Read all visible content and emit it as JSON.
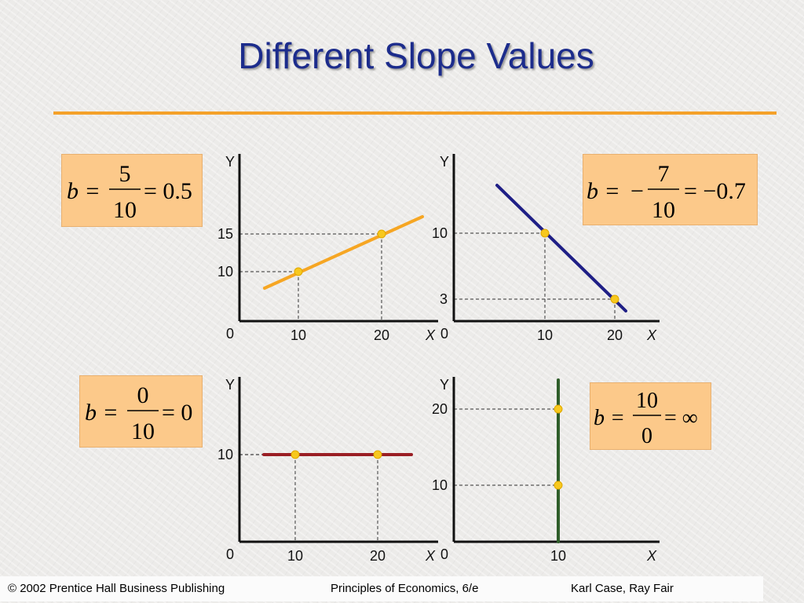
{
  "title": "Different Slope Values",
  "formulas": {
    "f1": {
      "lhs": "b =",
      "num": "5",
      "den": "10",
      "rhs": "= 0.5"
    },
    "f2": {
      "lhs": "b =",
      "neg": "−",
      "num": "7",
      "den": "10",
      "rhs": "= −0.7"
    },
    "f3": {
      "lhs": "b =",
      "num": "0",
      "den": "10",
      "rhs": "= 0"
    },
    "f4": {
      "lhs": "b =",
      "num": "10",
      "den": "0",
      "rhs": "= ∞"
    }
  },
  "footer": {
    "left": "© 2002 Prentice Hall Business Publishing",
    "center": "Principles of Economics, 6/e",
    "right": "Karl Case, Ray Fair"
  },
  "colors": {
    "title": "#1c2c8c",
    "rule": "#f4a12a",
    "box": "#fcc98a"
  },
  "chart_data": [
    {
      "type": "line",
      "xlabel": "X",
      "ylabel": "Y",
      "origin_label": "0",
      "x_ticks": [
        "10",
        "20"
      ],
      "y_ticks": [
        "10",
        "15"
      ],
      "points": [
        {
          "x": 10,
          "y": 10
        },
        {
          "x": 20,
          "y": 15
        }
      ],
      "slope": 0.5,
      "color": "#f6a623"
    },
    {
      "type": "line",
      "xlabel": "X",
      "ylabel": "Y",
      "origin_label": "0",
      "x_ticks": [
        "10",
        "20"
      ],
      "y_ticks": [
        "3",
        "10"
      ],
      "points": [
        {
          "x": 10,
          "y": 10
        },
        {
          "x": 20,
          "y": 3
        }
      ],
      "slope": -0.7,
      "color": "#1f1f86"
    },
    {
      "type": "line",
      "xlabel": "X",
      "ylabel": "Y",
      "origin_label": "0",
      "x_ticks": [
        "10",
        "20"
      ],
      "y_ticks": [
        "10"
      ],
      "points": [
        {
          "x": 10,
          "y": 10
        },
        {
          "x": 20,
          "y": 10
        }
      ],
      "slope": 0,
      "color": "#9a1e24"
    },
    {
      "type": "line",
      "xlabel": "X",
      "ylabel": "Y",
      "origin_label": "0",
      "x_ticks": [
        "10"
      ],
      "y_ticks": [
        "10",
        "20"
      ],
      "points": [
        {
          "x": 10,
          "y": 10
        },
        {
          "x": 10,
          "y": 20
        }
      ],
      "slope": "infinite",
      "color": "#2f5e2a"
    }
  ]
}
